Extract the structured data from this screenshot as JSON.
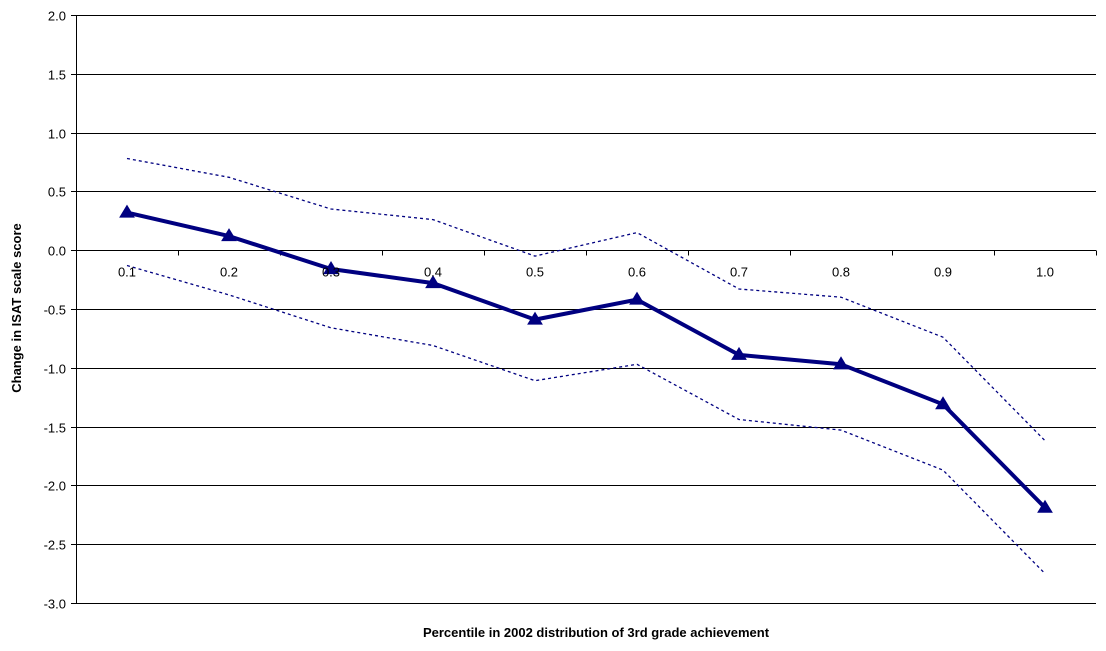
{
  "chart_data": {
    "type": "line",
    "title": "",
    "xlabel": "Percentile in 2002 distribution of 3rd grade achievement",
    "ylabel": "Change in ISAT scale score",
    "ylim": [
      -3.0,
      2.0
    ],
    "y_ticks": [
      "2.0",
      "1.5",
      "1.0",
      "0.5",
      "0.0",
      "-0.5",
      "-1.0",
      "-1.5",
      "-2.0",
      "-2.5",
      "-3.0"
    ],
    "y_tick_values": [
      2.0,
      1.5,
      1.0,
      0.5,
      0.0,
      -0.5,
      -1.0,
      -1.5,
      -2.0,
      -2.5,
      -3.0
    ],
    "categories": [
      "0.1",
      "0.2",
      "0.3",
      "0.4",
      "0.5",
      "0.6",
      "0.7",
      "0.8",
      "0.9",
      "1.0"
    ],
    "grid": "horizontal",
    "legend": "none",
    "series": [
      {
        "values": [
          0.32,
          0.12,
          -0.16,
          -0.28,
          -0.59,
          -0.42,
          -0.89,
          -0.97,
          -1.31,
          -2.19
        ],
        "color": "#000080",
        "style": "solid",
        "marker": "triangle"
      },
      {
        "values": [
          0.78,
          0.62,
          0.35,
          0.26,
          -0.05,
          0.15,
          -0.33,
          -0.4,
          -0.74,
          -1.62
        ],
        "color": "#000080",
        "style": "dotted",
        "marker": "none"
      },
      {
        "values": [
          -0.13,
          -0.38,
          -0.66,
          -0.81,
          -1.11,
          -0.97,
          -1.44,
          -1.53,
          -1.87,
          -2.75
        ],
        "color": "#000080",
        "style": "dotted",
        "marker": "none"
      }
    ]
  }
}
